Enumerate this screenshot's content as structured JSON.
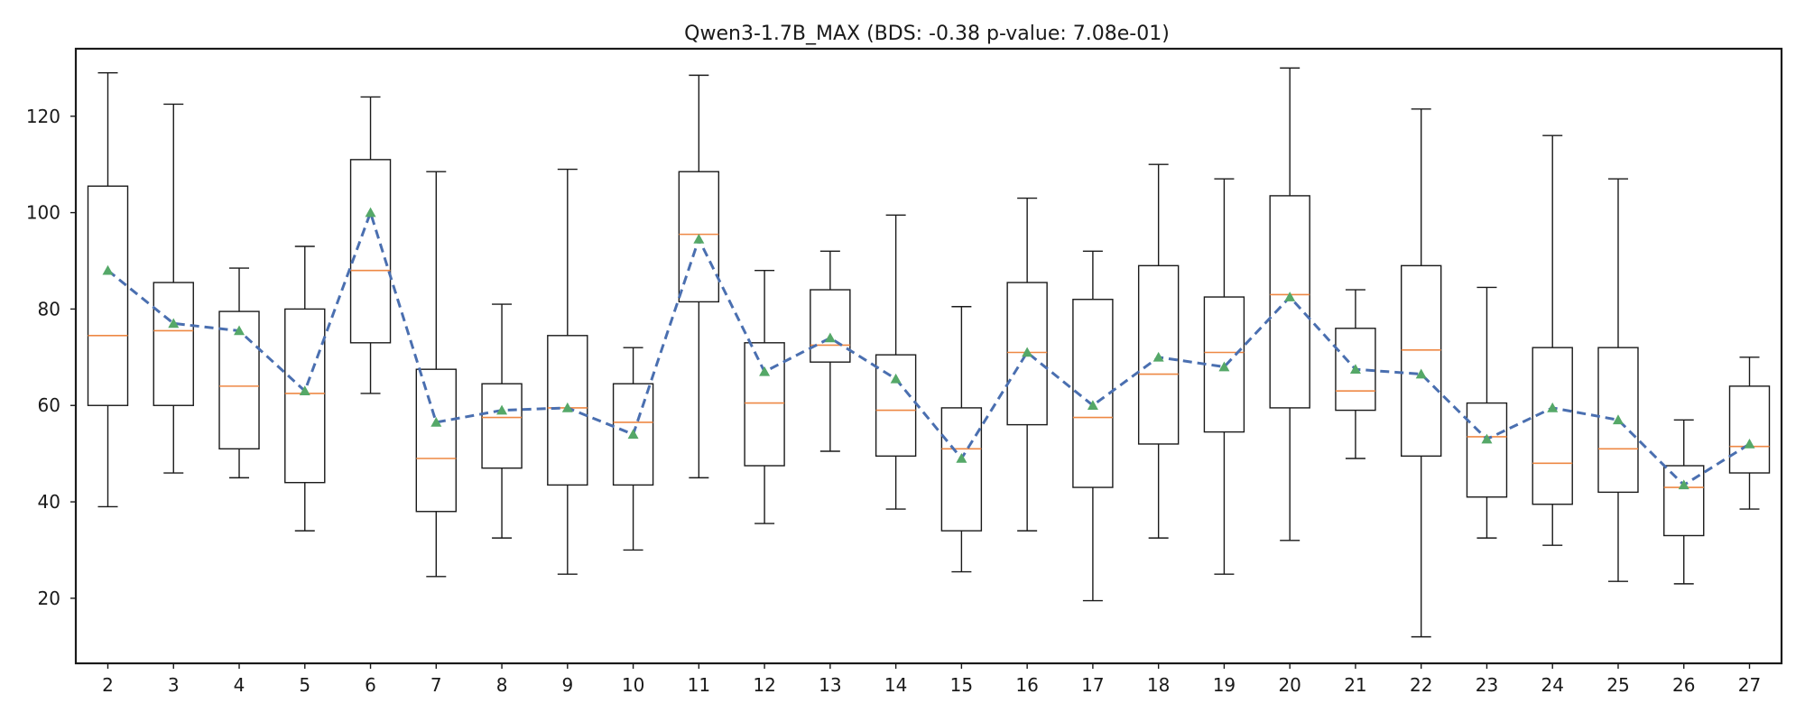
{
  "chart_data": {
    "type": "box",
    "title": "Qwen3-1.7B_MAX (BDS: -0.38 p-value: 7.08e-01)",
    "xlabel": "",
    "ylabel": "",
    "ylim": [
      6.5,
      134
    ],
    "yticks": [
      20,
      40,
      60,
      80,
      100,
      120
    ],
    "grid": false,
    "legend": "none",
    "categories": [
      "2",
      "3",
      "4",
      "5",
      "6",
      "7",
      "8",
      "9",
      "10",
      "11",
      "12",
      "13",
      "14",
      "15",
      "16",
      "17",
      "18",
      "19",
      "20",
      "21",
      "22",
      "23",
      "24",
      "25",
      "26",
      "27"
    ],
    "boxes": [
      {
        "category": "2",
        "whislo": 39,
        "q1": 60,
        "med": 74.5,
        "q3": 105.5,
        "whishi": 129,
        "mean": 88
      },
      {
        "category": "3",
        "whislo": 46,
        "q1": 60,
        "med": 75.5,
        "q3": 85.5,
        "whishi": 122.5,
        "mean": 77
      },
      {
        "category": "4",
        "whislo": 45,
        "q1": 51,
        "med": 64,
        "q3": 79.5,
        "whishi": 88.5,
        "mean": 75.5
      },
      {
        "category": "5",
        "whislo": 34,
        "q1": 44,
        "med": 62.5,
        "q3": 80,
        "whishi": 93,
        "mean": 63
      },
      {
        "category": "6",
        "whislo": 62.5,
        "q1": 73,
        "med": 88,
        "q3": 111,
        "whishi": 124,
        "mean": 100
      },
      {
        "category": "7",
        "whislo": 24.5,
        "q1": 38,
        "med": 49,
        "q3": 67.5,
        "whishi": 108.5,
        "mean": 56.5
      },
      {
        "category": "8",
        "whislo": 32.5,
        "q1": 47,
        "med": 57.5,
        "q3": 64.5,
        "whishi": 81,
        "mean": 59
      },
      {
        "category": "9",
        "whislo": 25,
        "q1": 43.5,
        "med": 59.5,
        "q3": 74.5,
        "whishi": 109,
        "mean": 59.5
      },
      {
        "category": "10",
        "whislo": 30,
        "q1": 43.5,
        "med": 56.5,
        "q3": 64.5,
        "whishi": 72,
        "mean": 54
      },
      {
        "category": "11",
        "whislo": 45,
        "q1": 81.5,
        "med": 95.5,
        "q3": 108.5,
        "whishi": 128.5,
        "mean": 94.5
      },
      {
        "category": "12",
        "whislo": 35.5,
        "q1": 47.5,
        "med": 60.5,
        "q3": 73,
        "whishi": 88,
        "mean": 67
      },
      {
        "category": "13",
        "whislo": 50.5,
        "q1": 69,
        "med": 72.5,
        "q3": 84,
        "whishi": 92,
        "mean": 74
      },
      {
        "category": "14",
        "whislo": 38.5,
        "q1": 49.5,
        "med": 59,
        "q3": 70.5,
        "whishi": 99.5,
        "mean": 65.5
      },
      {
        "category": "15",
        "whislo": 25.5,
        "q1": 34,
        "med": 51,
        "q3": 59.5,
        "whishi": 80.5,
        "mean": 49
      },
      {
        "category": "16",
        "whislo": 34,
        "q1": 56,
        "med": 71,
        "q3": 85.5,
        "whishi": 103,
        "mean": 71
      },
      {
        "category": "17",
        "whislo": 19.5,
        "q1": 43,
        "med": 57.5,
        "q3": 82,
        "whishi": 92,
        "mean": 60
      },
      {
        "category": "18",
        "whislo": 32.5,
        "q1": 52,
        "med": 66.5,
        "q3": 89,
        "whishi": 110,
        "mean": 70
      },
      {
        "category": "19",
        "whislo": 25,
        "q1": 54.5,
        "med": 71,
        "q3": 82.5,
        "whishi": 107,
        "mean": 68
      },
      {
        "category": "20",
        "whislo": 32,
        "q1": 59.5,
        "med": 83,
        "q3": 103.5,
        "whishi": 130,
        "mean": 82.5
      },
      {
        "category": "21",
        "whislo": 49,
        "q1": 59,
        "med": 63,
        "q3": 76,
        "whishi": 84,
        "mean": 67.5
      },
      {
        "category": "22",
        "whislo": 12,
        "q1": 49.5,
        "med": 71.5,
        "q3": 89,
        "whishi": 121.5,
        "mean": 66.5
      },
      {
        "category": "23",
        "whislo": 32.5,
        "q1": 41,
        "med": 53.5,
        "q3": 60.5,
        "whishi": 84.5,
        "mean": 53
      },
      {
        "category": "24",
        "whislo": 31,
        "q1": 39.5,
        "med": 48,
        "q3": 72,
        "whishi": 116,
        "mean": 59.5
      },
      {
        "category": "25",
        "whislo": 23.5,
        "q1": 42,
        "med": 51,
        "q3": 72,
        "whishi": 107,
        "mean": 57
      },
      {
        "category": "26",
        "whislo": 23,
        "q1": 33,
        "med": 43,
        "q3": 47.5,
        "whishi": 57,
        "mean": 43.5
      },
      {
        "category": "27",
        "whislo": 38.5,
        "q1": 46,
        "med": 51.5,
        "q3": 64,
        "whishi": 70,
        "mean": 52
      }
    ],
    "colors": {
      "box": "#1a1a1a",
      "median": "#ee8844",
      "mean_marker": "#55a868",
      "mean_line": "#4a6fb0"
    }
  }
}
